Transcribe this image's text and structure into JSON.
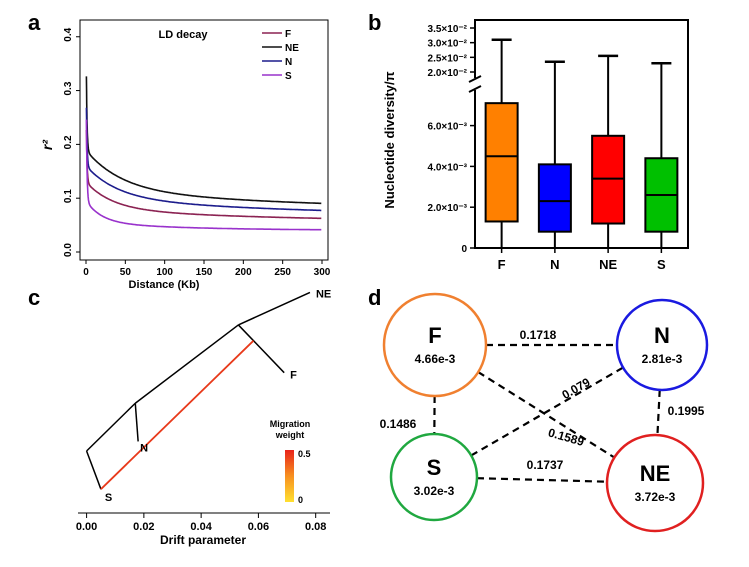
{
  "panels": {
    "a": {
      "letter": "a"
    },
    "b": {
      "letter": "b"
    },
    "c": {
      "letter": "c"
    },
    "d": {
      "letter": "d"
    }
  },
  "chart_data": [
    {
      "panel": "a",
      "type": "line",
      "title": "LD decay",
      "xlabel": "Distance (Kb)",
      "ylabel": "r²",
      "xlim": [
        0,
        300
      ],
      "ylim": [
        0,
        0.42
      ],
      "xticks": [
        0,
        50,
        100,
        150,
        200,
        250,
        300
      ],
      "yticks": [
        0.0,
        0.1,
        0.2,
        0.3,
        0.4
      ],
      "yticklabels": [
        "0.0",
        "0.1",
        "0.2",
        "0.3",
        "0.4"
      ],
      "legend_position": "top-right",
      "series": [
        {
          "name": "F",
          "color": "#8B2252",
          "peak": 0.3,
          "plateau": 0.055,
          "amp": 0.05,
          "k": 0.03,
          "amp_slow": 0.025,
          "k_slow": 0.004
        },
        {
          "name": "NE",
          "color": "#111111",
          "peak": 0.43,
          "plateau": 0.074,
          "amp": 0.075,
          "k": 0.022,
          "amp_slow": 0.04,
          "k_slow": 0.003
        },
        {
          "name": "N",
          "color": "#1C1C8C",
          "peak": 0.35,
          "plateau": 0.065,
          "amp": 0.06,
          "k": 0.025,
          "amp_slow": 0.035,
          "k_slow": 0.0035
        },
        {
          "name": "S",
          "color": "#9932CC",
          "peak": 0.36,
          "plateau": 0.04,
          "amp": 0.04,
          "k": 0.05,
          "amp_slow": 0.015,
          "k_slow": 0.008
        }
      ]
    },
    {
      "panel": "b",
      "type": "box",
      "ylabel": "Nucleotide diversity/π",
      "categories": [
        "F",
        "N",
        "NE",
        "S"
      ],
      "colors": [
        "#FF8000",
        "#0000FF",
        "#FF0000",
        "#00C000"
      ],
      "lower_ylim": [
        0,
        0.0075
      ],
      "upper_ylim": [
        0.02,
        0.035
      ],
      "lower_ticks": [
        0,
        0.002,
        0.004,
        0.006
      ],
      "lower_ticklabels": [
        "0",
        "2.0×10⁻³",
        "4.0×10⁻³",
        "6.0×10⁻³"
      ],
      "upper_ticks": [
        0.02,
        0.025,
        0.03,
        0.035
      ],
      "upper_ticklabels": [
        "2.0×10⁻²",
        "2.5×10⁻²",
        "3.0×10⁻²",
        "3.5×10⁻²"
      ],
      "boxes": [
        {
          "min": 0.0,
          "q1": 0.0013,
          "median": 0.0045,
          "q3": 0.0071,
          "max": 0.031
        },
        {
          "min": 0.0,
          "q1": 0.0008,
          "median": 0.0023,
          "q3": 0.0041,
          "max": 0.0235
        },
        {
          "min": 0.0,
          "q1": 0.0012,
          "median": 0.0034,
          "q3": 0.0055,
          "max": 0.0255
        },
        {
          "min": 0.0,
          "q1": 0.0008,
          "median": 0.0026,
          "q3": 0.0044,
          "max": 0.023
        }
      ]
    },
    {
      "panel": "c",
      "type": "tree",
      "xlabel": "Drift parameter",
      "xlim": [
        -0.003,
        0.085
      ],
      "xticks": [
        0.0,
        0.02,
        0.04,
        0.06,
        0.08
      ],
      "xticklabels": [
        "0.00",
        "0.02",
        "0.04",
        "0.06",
        "0.08"
      ],
      "legend": {
        "title_line1": "Migration",
        "title_line2": "weight",
        "max_label": "0.5",
        "min_label": "0"
      },
      "nodes": [
        {
          "id": "root",
          "x": 0.0,
          "y": 0.22,
          "label": ""
        },
        {
          "id": "S",
          "x": 0.005,
          "y": 0.02,
          "label": "S"
        },
        {
          "id": "i1",
          "x": 0.017,
          "y": 0.47,
          "label": ""
        },
        {
          "id": "N",
          "x": 0.018,
          "y": 0.27,
          "label": "N"
        },
        {
          "id": "i2",
          "x": 0.053,
          "y": 0.88,
          "label": ""
        },
        {
          "id": "NE",
          "x": 0.078,
          "y": 1.05,
          "label": "NE"
        },
        {
          "id": "F",
          "x": 0.069,
          "y": 0.63,
          "label": "F"
        }
      ],
      "edges": [
        [
          "root",
          "S"
        ],
        [
          "root",
          "i1"
        ],
        [
          "i1",
          "N"
        ],
        [
          "i1",
          "i2"
        ],
        [
          "i2",
          "NE"
        ],
        [
          "i2",
          "F"
        ]
      ],
      "migration": {
        "from": "S",
        "to_on_edge": [
          "i2",
          "F"
        ],
        "to_fraction": 0.33,
        "weight": 0.5,
        "color": "#E8391A"
      }
    },
    {
      "panel": "d",
      "type": "network",
      "nodes": [
        {
          "name": "F",
          "value": "4.66e-3",
          "color": "#F08030"
        },
        {
          "name": "N",
          "value": "2.81e-3",
          "color": "#1A1AE0"
        },
        {
          "name": "S",
          "value": "3.02e-3",
          "color": "#20A840"
        },
        {
          "name": "NE",
          "value": "3.72e-3",
          "color": "#E02020"
        }
      ],
      "edges": [
        {
          "from": "F",
          "to": "N",
          "label": "0.1718"
        },
        {
          "from": "F",
          "to": "S",
          "label": "0.1486"
        },
        {
          "from": "F",
          "to": "NE",
          "label": "0.1589"
        },
        {
          "from": "S",
          "to": "N",
          "label": "0.079"
        },
        {
          "from": "N",
          "to": "NE",
          "label": "0.1995"
        },
        {
          "from": "S",
          "to": "NE",
          "label": "0.1737"
        }
      ]
    }
  ]
}
